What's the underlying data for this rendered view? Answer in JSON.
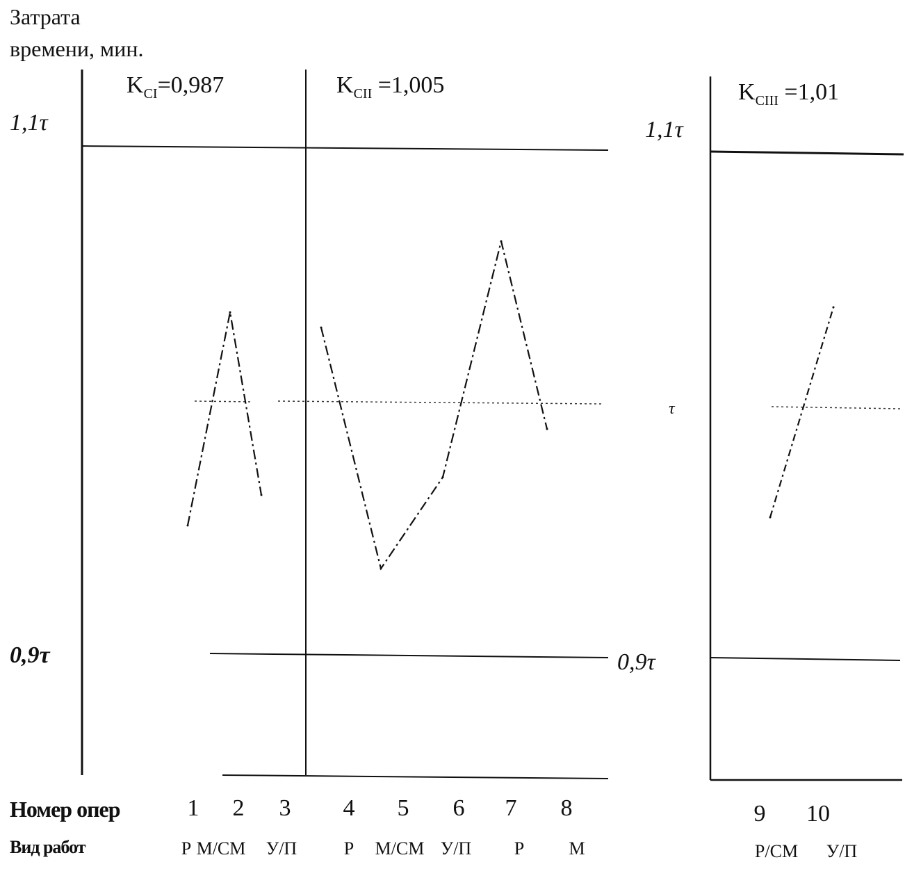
{
  "title_line1": "Затрата",
  "title_line2": "времени, мин.",
  "coefficients": [
    {
      "prefix": "K",
      "sub": "CI",
      "rest": "=0,987"
    },
    {
      "prefix": "K",
      "sub": "CII",
      "rest": " =1,005"
    },
    {
      "prefix": "K",
      "sub": "CIII",
      "rest": " =1,01"
    }
  ],
  "ticks": {
    "upper": "1,1τ",
    "middle": "τ",
    "lower": "0,9τ"
  },
  "row_labels": {
    "op_numbers": "Номер опер",
    "work_types": "Вид работ"
  },
  "chart_data": {
    "type": "line",
    "title": "",
    "ylabel": "Затрата времени, мин.",
    "xlabel": "",
    "reference_lines": [
      "1,1τ",
      "τ",
      "0,9τ"
    ],
    "operations": [
      "1",
      "2",
      "3",
      "4",
      "5",
      "6",
      "7",
      "8",
      "9",
      "10"
    ],
    "work_types": [
      "Р",
      "М/СМ",
      "У/П",
      "Р",
      "М/СМ",
      "У/П",
      "Р",
      "М",
      "Р/СМ",
      "У/П"
    ],
    "series": [
      {
        "values": [
          0.951,
          1.035,
          0.963
        ]
      },
      {
        "values": [
          1.029,
          0.934,
          0.97,
          1.063,
          0.989
        ]
      },
      {
        "values": [
          0.956,
          1.039
        ]
      }
    ],
    "ylim": [
      0.9,
      1.1
    ]
  }
}
